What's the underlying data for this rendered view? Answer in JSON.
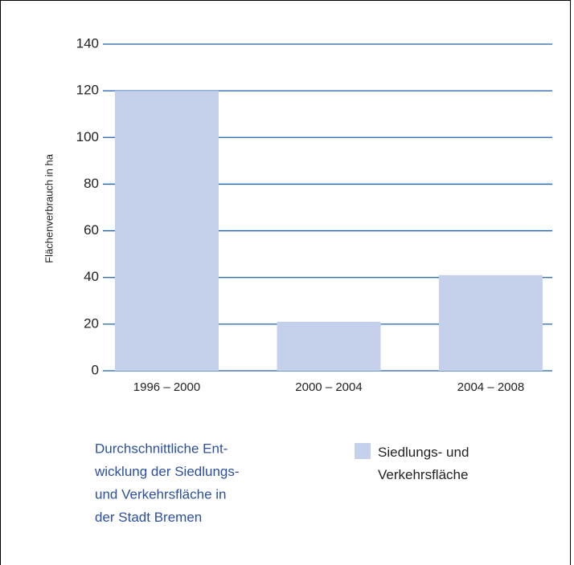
{
  "chart_data": {
    "type": "bar",
    "title": [
      "Durchschnittliche Ent-",
      "wicklung der Siedlungs-",
      "und Verkehrsfläche in",
      "der Stadt Bremen"
    ],
    "y_label": "Flächenverbrauch in ha",
    "categories": [
      "1996 – 2000",
      "2000 – 2004",
      "2004 – 2008"
    ],
    "series": [
      {
        "name": "Siedlungs- und Verkehrsfläche",
        "color": "#c5d0ea",
        "values": [
          120,
          21,
          41
        ]
      }
    ],
    "ylim": [
      0,
      140
    ],
    "yticks": [
      0,
      20,
      40,
      60,
      80,
      100,
      120,
      140
    ],
    "grid": true,
    "grid_color": "#1f5fa8"
  }
}
